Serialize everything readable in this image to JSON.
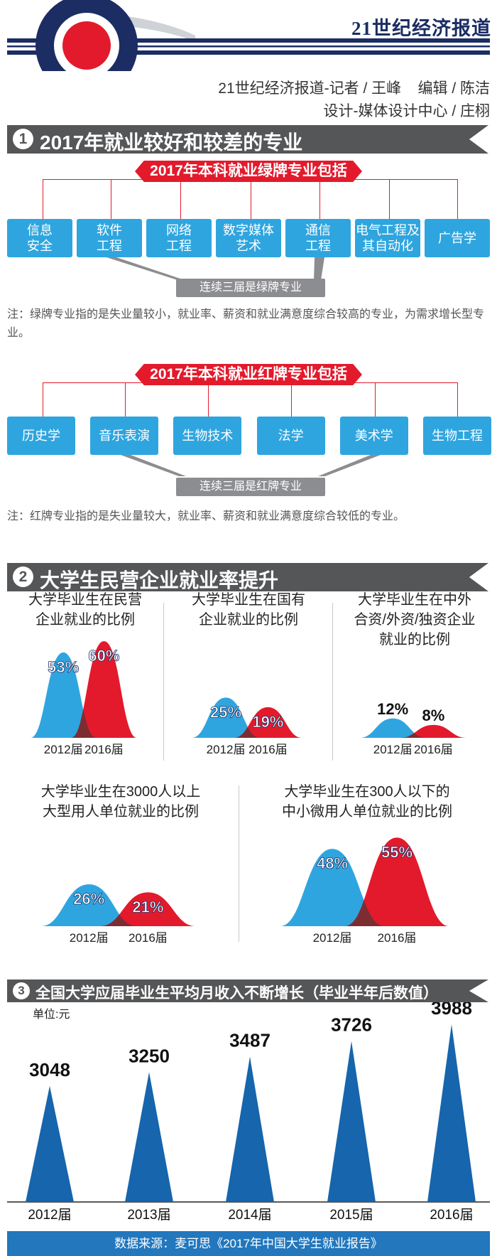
{
  "header": {
    "brand": "21世纪经济报道",
    "credit_line1": "21世纪经济报道-记者 / 王峰    编辑 / 陈洁",
    "credit_line2": "设计-媒体设计中心 / 庄栩"
  },
  "section1": {
    "number": "1",
    "title": "2017年就业较好和较差的专业",
    "green": {
      "banner": "2017年本科就业绿牌专业包括",
      "majors": [
        "信息\n安全",
        "软件\n工程",
        "网络\n工程",
        "数字媒体\n艺术",
        "通信\n工程",
        "电气工程及\n其自动化",
        "广告学"
      ],
      "consecutive_tag": "连续三届是绿牌专业",
      "note": "注：绿牌专业指的是失业量较小，就业率、薪资和就业满意度综合较高的专业，为需求增长型专业。"
    },
    "red": {
      "banner": "2017年本科就业红牌专业包括",
      "majors": [
        "历史学",
        "音乐表演",
        "生物技术",
        "法学",
        "美术学",
        "生物工程"
      ],
      "consecutive_tag": "连续三届是红牌专业",
      "note": "注：红牌专业指的是失业量较大，就业率、薪资和就业满意度综合较低的专业。"
    }
  },
  "section2": {
    "number": "2",
    "title": "大学生民营企业就业率提升"
  },
  "section3": {
    "number": "3",
    "title": "全国大学应届毕业生平均月收入不断增长（毕业半年后数值）",
    "unit": "单位:元"
  },
  "footer": {
    "source": "数据来源：麦可思《2017年中国大学生就业报告》"
  },
  "colors": {
    "blue": "#2fa5df",
    "red": "#e31a2c",
    "navy": "#1b2d63",
    "dark_blue": "#1665ad",
    "gray_bar": "#555658"
  },
  "chart_data": [
    {
      "type": "area",
      "title": "大学毕业生在民营\n企业就业的比例",
      "categories": [
        "2012届",
        "2016届"
      ],
      "values": [
        53,
        60
      ],
      "labels": [
        "53%",
        "60%"
      ],
      "unit": "%"
    },
    {
      "type": "area",
      "title": "大学毕业生在国有\n企业就业的比例",
      "categories": [
        "2012届",
        "2016届"
      ],
      "values": [
        25,
        19
      ],
      "labels": [
        "25%",
        "19%"
      ],
      "unit": "%"
    },
    {
      "type": "area",
      "title": "大学毕业生在中外\n合资/外资/独资企业\n就业的比例",
      "categories": [
        "2012届",
        "2016届"
      ],
      "values": [
        12,
        8
      ],
      "labels": [
        "12%",
        "8%"
      ],
      "unit": "%"
    },
    {
      "type": "area",
      "title": "大学毕业生在3000人以上\n大型用人单位就业的比例",
      "categories": [
        "2012届",
        "2016届"
      ],
      "values": [
        26,
        21
      ],
      "labels": [
        "26%",
        "21%"
      ],
      "unit": "%"
    },
    {
      "type": "area",
      "title": "大学毕业生在300人以下的\n中小微用人单位就业的比例",
      "categories": [
        "2012届",
        "2016届"
      ],
      "values": [
        48,
        55
      ],
      "labels": [
        "48%",
        "55%"
      ],
      "unit": "%"
    },
    {
      "type": "bar",
      "categories": [
        "2012届",
        "2013届",
        "2014届",
        "2015届",
        "2016届"
      ],
      "values": [
        3048,
        3250,
        3487,
        3726,
        3988
      ],
      "labels": [
        "3048",
        "3250",
        "3487",
        "3726",
        "3988"
      ]
    }
  ]
}
